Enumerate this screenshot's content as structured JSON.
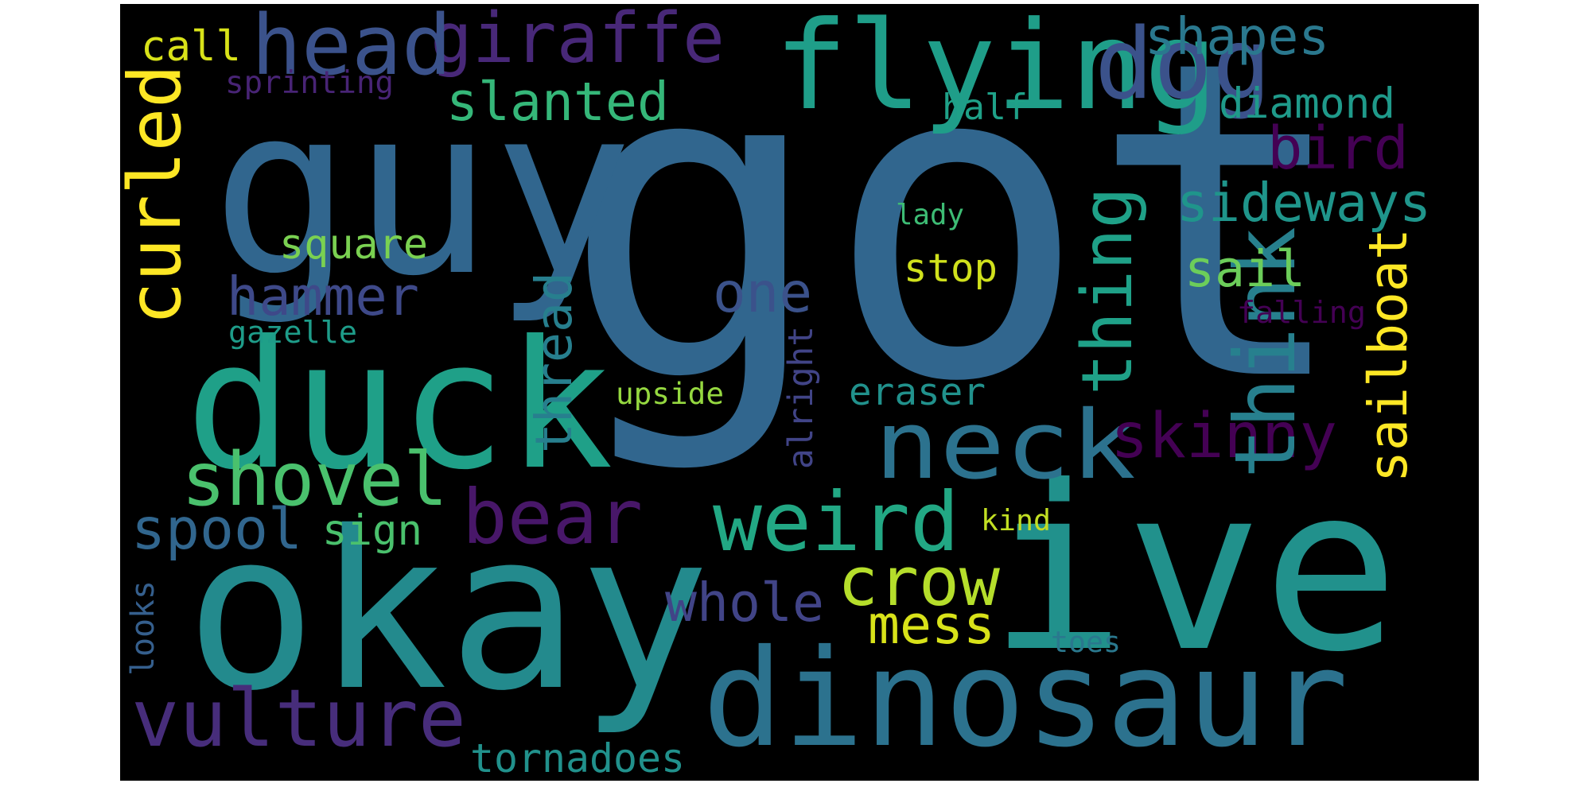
{
  "title": "",
  "words": [
    {
      "text": "got",
      "color": "#31668e"
    },
    {
      "text": "ive",
      "color": "#21918c"
    },
    {
      "text": "guy",
      "color": "#31668e"
    },
    {
      "text": "okay",
      "color": "#238a8d"
    },
    {
      "text": "duck",
      "color": "#1fa088"
    },
    {
      "text": "dinosaur",
      "color": "#2c728e"
    },
    {
      "text": "flying",
      "color": "#1f9e89"
    },
    {
      "text": "giraffe",
      "color": "#482878"
    },
    {
      "text": "head",
      "color": "#3b528b"
    },
    {
      "text": "dog",
      "color": "#3b528b"
    },
    {
      "text": "vulture",
      "color": "#472d7b"
    },
    {
      "text": "neck",
      "color": "#2c728e"
    },
    {
      "text": "shovel",
      "color": "#4ac16d"
    },
    {
      "text": "weird",
      "color": "#22a884"
    },
    {
      "text": "bear",
      "color": "#481769"
    },
    {
      "text": "skinny",
      "color": "#440154"
    },
    {
      "text": "think",
      "color": "#27808e"
    },
    {
      "text": "thing",
      "color": "#1fa188"
    },
    {
      "text": "curled",
      "color": "#fde725"
    },
    {
      "text": "crow",
      "color": "#b5de2b"
    },
    {
      "text": "sideways",
      "color": "#1f958b"
    },
    {
      "text": "whole",
      "color": "#414487"
    },
    {
      "text": "mess",
      "color": "#d8e219"
    },
    {
      "text": "slanted",
      "color": "#35b779"
    },
    {
      "text": "sail",
      "color": "#6ccd5a"
    },
    {
      "text": "sailboat",
      "color": "#fde725"
    },
    {
      "text": "hammer",
      "color": "#3e4989"
    },
    {
      "text": "bird",
      "color": "#440154"
    },
    {
      "text": "spool",
      "color": "#31668e"
    },
    {
      "text": "thread",
      "color": "#277f8e"
    },
    {
      "text": "shapes",
      "color": "#2a788e"
    },
    {
      "text": "one",
      "color": "#3b528b"
    },
    {
      "text": "tornadoes",
      "color": "#21918c"
    },
    {
      "text": "diamond",
      "color": "#1f9a8a"
    },
    {
      "text": "eraser",
      "color": "#21918c"
    },
    {
      "text": "stop",
      "color": "#d0e11c"
    },
    {
      "text": "square",
      "color": "#7ad151"
    },
    {
      "text": "sign",
      "color": "#4ac16d"
    },
    {
      "text": "call",
      "color": "#d8e219"
    },
    {
      "text": "half",
      "color": "#1fa188"
    },
    {
      "text": "alright",
      "color": "#414487"
    },
    {
      "text": "upside",
      "color": "#95d840"
    },
    {
      "text": "kind",
      "color": "#c2df23"
    },
    {
      "text": "toes",
      "color": "#2a788e"
    },
    {
      "text": "sprinting",
      "color": "#482475"
    },
    {
      "text": "lady",
      "color": "#3dbc74"
    },
    {
      "text": "gazelle",
      "color": "#1e9c89"
    },
    {
      "text": "looks",
      "color": "#355f8d"
    },
    {
      "text": "falling",
      "color": "#440154"
    }
  ]
}
